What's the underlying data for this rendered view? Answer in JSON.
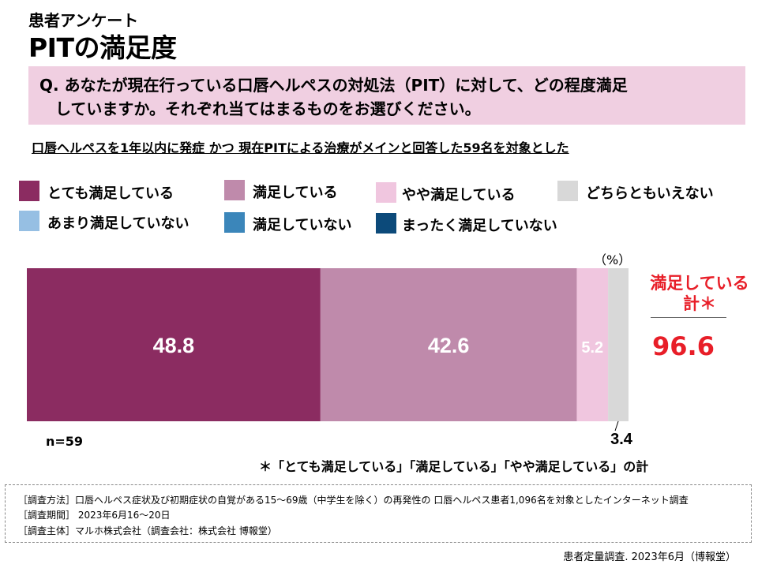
{
  "header": {
    "subtitle": "患者アンケート",
    "title": "PITの満足度"
  },
  "question": {
    "line1": "Q. あなたが現在行っている口唇ヘルペスの対処法（PIT）に対して、どの程度満足",
    "line2": "していますか。それぞれ当てはまるものをお選びください。"
  },
  "target_text": "口唇ヘルペスを1年以内に発症 かつ 現在PITによる治療がメインと回答した59名を対象とした",
  "legend": [
    {
      "label": "とても満足している",
      "color": "#8b2c61"
    },
    {
      "label": "満足している",
      "color": "#bf8aab"
    },
    {
      "label": "やや満足している",
      "color": "#f0c6df"
    },
    {
      "label": "どちらともいえない",
      "color": "#d8d8d8"
    },
    {
      "label": "あまり満足していない",
      "color": "#96bfe3"
    },
    {
      "label": "満足していない",
      "color": "#3b86ba"
    },
    {
      "label": "まったく満足していない",
      "color": "#0c4a7a"
    }
  ],
  "chart_data": {
    "type": "bar",
    "orientation": "horizontal-stacked",
    "unit": "（%）",
    "categories": [
      "n=59"
    ],
    "series": [
      {
        "name": "とても満足している",
        "values": [
          48.8
        ],
        "color": "#8b2c61",
        "label": "48.8"
      },
      {
        "name": "満足している",
        "values": [
          42.6
        ],
        "color": "#bf8aab",
        "label": "42.6"
      },
      {
        "name": "やや満足している",
        "values": [
          5.2
        ],
        "color": "#f0c6df",
        "label": "5.2"
      },
      {
        "name": "どちらともいえない",
        "values": [
          3.4
        ],
        "color": "#d8d8d8",
        "label": "3.4"
      }
    ],
    "xlim": [
      0,
      100
    ]
  },
  "total": {
    "label_line1": "満足している",
    "label_line2": "計＊",
    "value": "96.6"
  },
  "sample": "n=59",
  "footnote": "＊「とても満足している」「満足している」「やや満足している」の計",
  "method": {
    "line1": "［調査方法］口唇ヘルペス症状及び初期症状の自覚がある15～69歳（中学生を除く）の再発性の 口唇ヘルペス患者1,096名を対象としたインターネット調査",
    "line2": "［調査期間］ 2023年6月16～20日",
    "line3": "［調査主体］マルホ株式会社（調査会社：株式会社 博報堂）"
  },
  "source": "患者定量調査. 2023年6月（博報堂）"
}
